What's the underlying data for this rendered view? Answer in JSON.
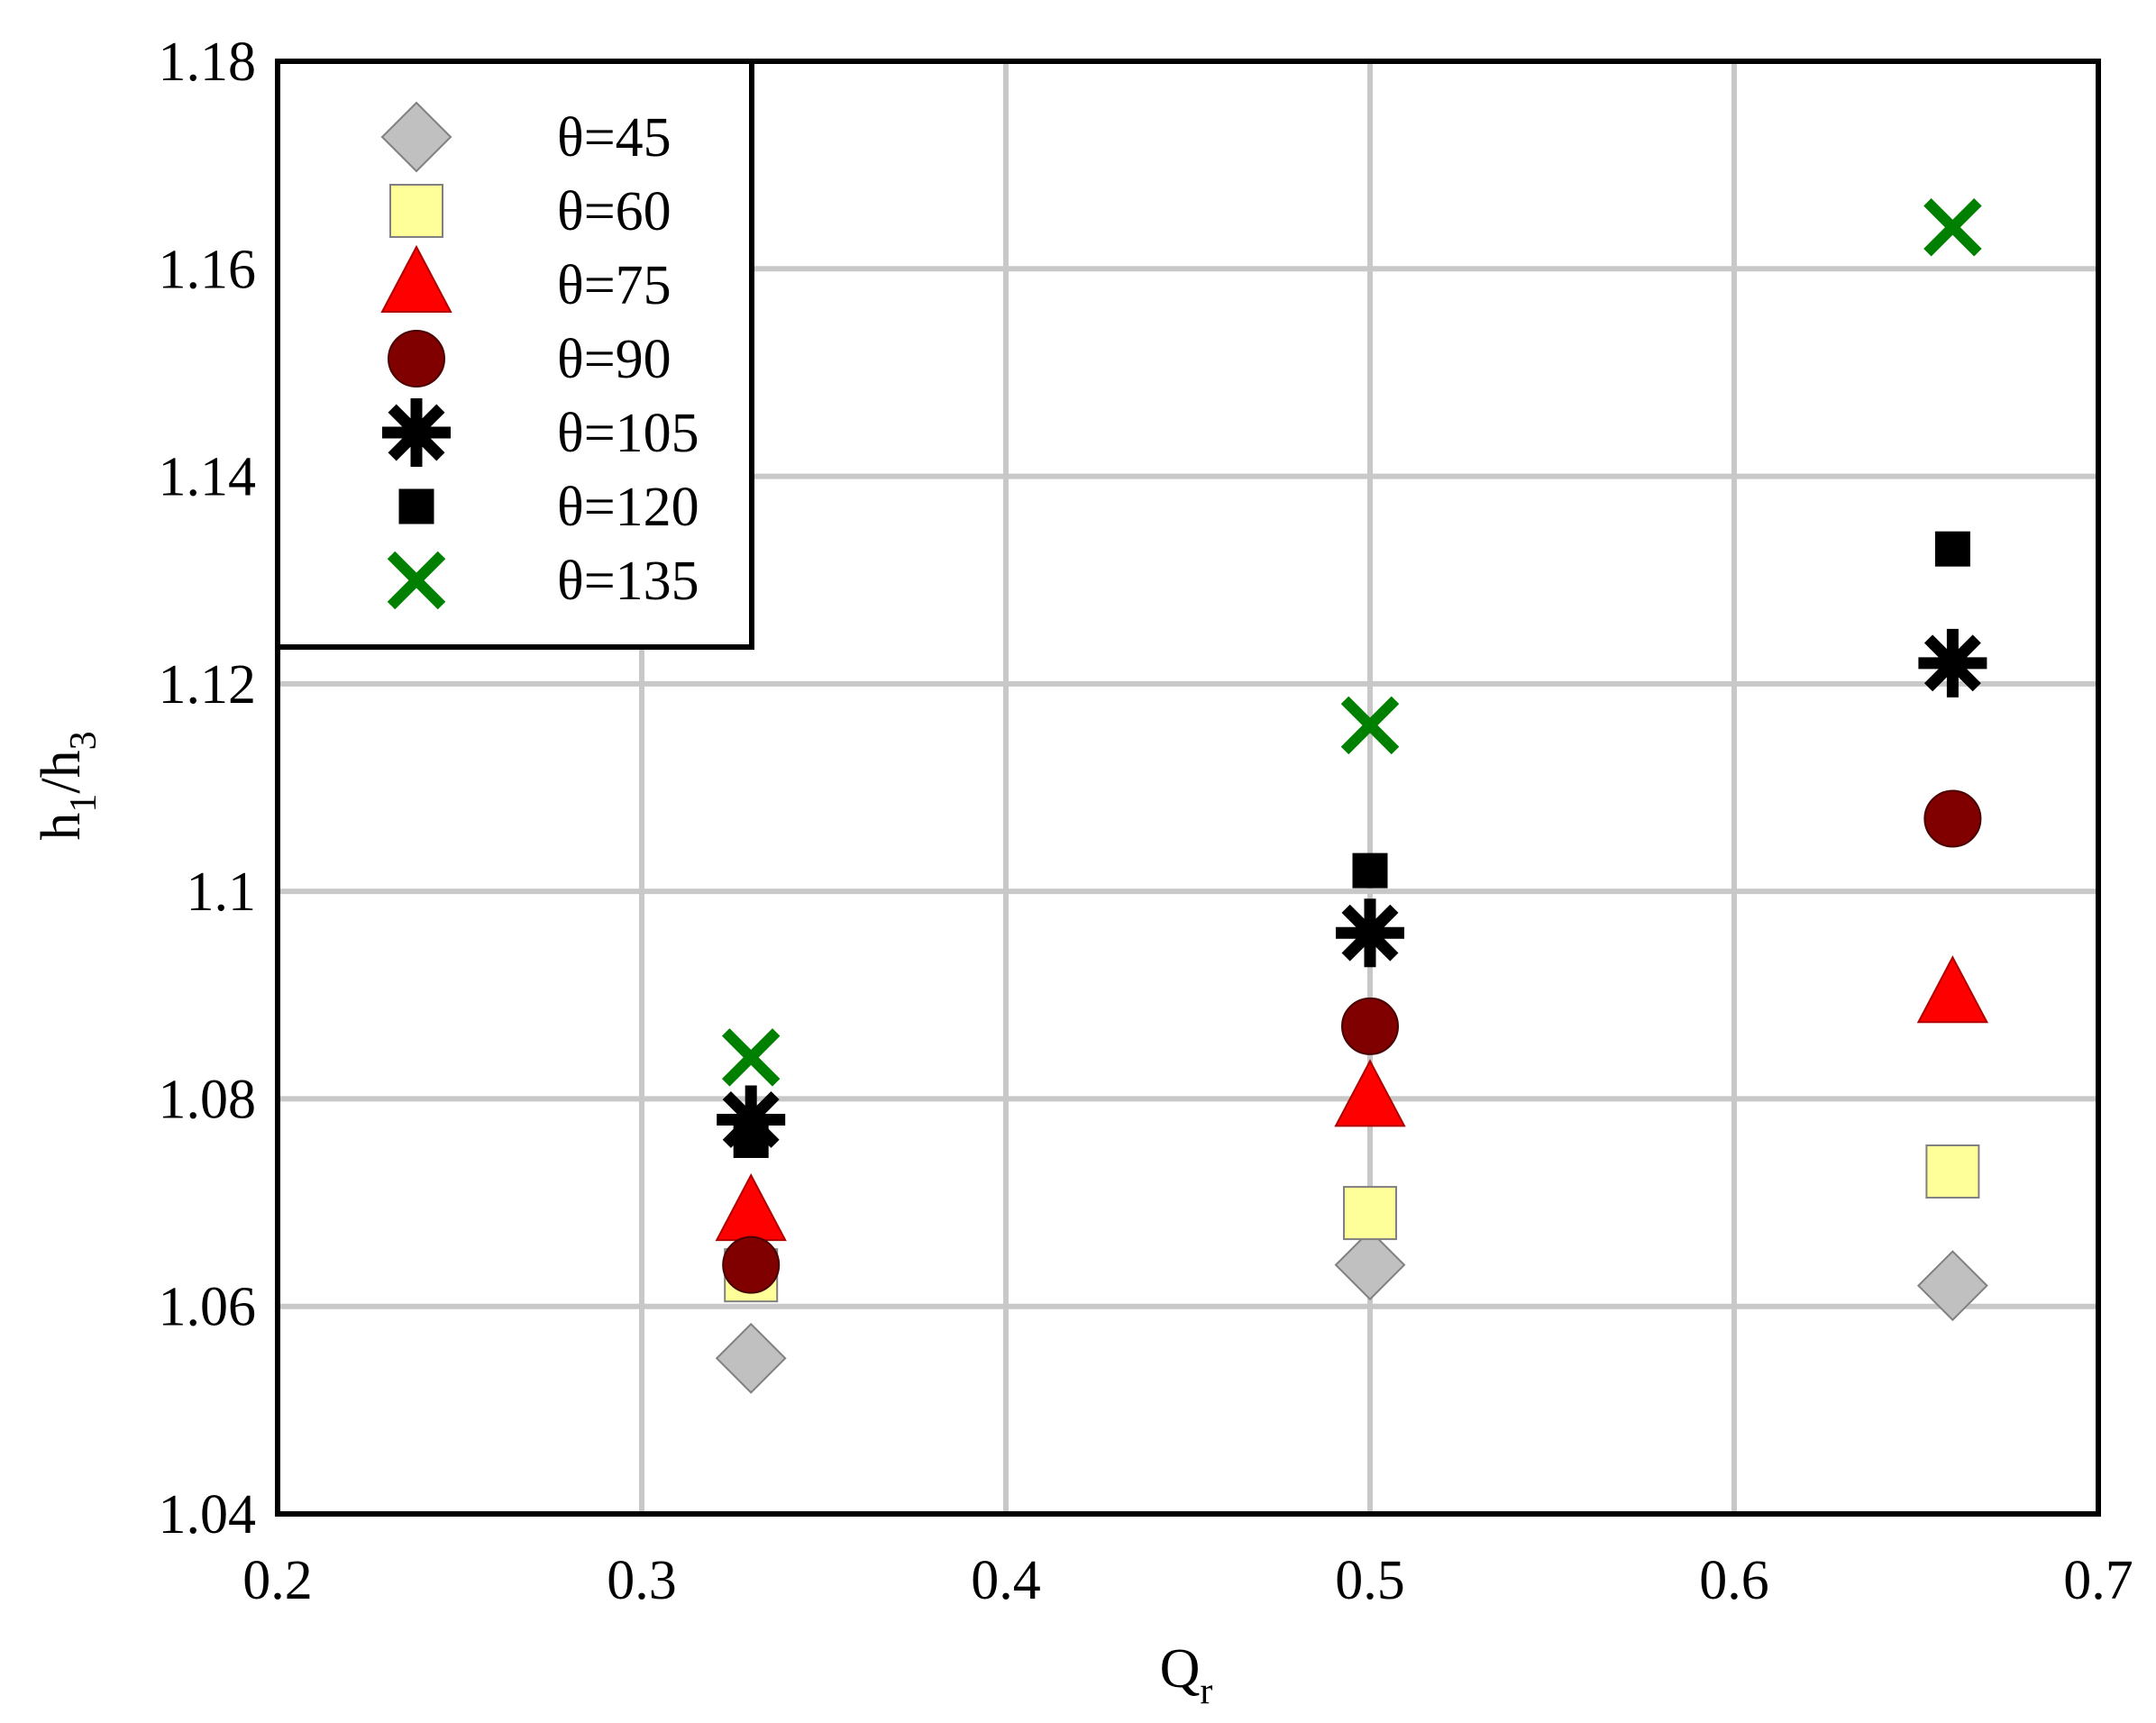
{
  "chart_data": {
    "type": "scatter",
    "title": "",
    "xlabel": "Q",
    "xlabel_sub": "r",
    "ylabel": "h",
    "ylabel_sub1": "1",
    "ylabel_mid": "/h",
    "ylabel_sub2": "3",
    "xlim": [
      0.2,
      0.7
    ],
    "ylim": [
      1.04,
      1.18
    ],
    "xticks": [
      0.2,
      0.3,
      0.4,
      0.5,
      0.6,
      0.7
    ],
    "xtick_labels": [
      "0.2",
      "0.3",
      "0.4",
      "0.5",
      "0.6",
      "0.7"
    ],
    "yticks": [
      1.04,
      1.06,
      1.08,
      1.1,
      1.12,
      1.14,
      1.16,
      1.18
    ],
    "ytick_labels": [
      "1.04",
      "1.06",
      "1.08",
      "1.1",
      "1.12",
      "1.14",
      "1.16",
      "1.18"
    ],
    "grid": true,
    "legend_position": "top-left",
    "series": [
      {
        "name": "θ=45",
        "marker": "diamond",
        "color": "#c0c0c0",
        "stroke": "#808080",
        "x": [
          0.33,
          0.5,
          0.66
        ],
        "y": [
          1.055,
          1.064,
          1.062
        ]
      },
      {
        "name": "θ=60",
        "marker": "square",
        "color": "#ffff99",
        "stroke": "#808080",
        "x": [
          0.33,
          0.5,
          0.66
        ],
        "y": [
          1.063,
          1.069,
          1.073
        ]
      },
      {
        "name": "θ=75",
        "marker": "triangle",
        "color": "#ff0000",
        "stroke": "#b00000",
        "x": [
          0.33,
          0.5,
          0.66
        ],
        "y": [
          1.069,
          1.08,
          1.09
        ]
      },
      {
        "name": "θ=90",
        "marker": "circle",
        "color": "#800000",
        "stroke": "#4a0000",
        "x": [
          0.33,
          0.5,
          0.66
        ],
        "y": [
          1.064,
          1.087,
          1.107
        ]
      },
      {
        "name": "θ=105",
        "marker": "star",
        "color": "#000000",
        "stroke": "#000000",
        "x": [
          0.33,
          0.5,
          0.66
        ],
        "y": [
          1.078,
          1.096,
          1.122
        ]
      },
      {
        "name": "θ=120",
        "marker": "smallsquare",
        "color": "#000000",
        "stroke": "#000000",
        "x": [
          0.33,
          0.5,
          0.66
        ],
        "y": [
          1.076,
          1.102,
          1.133
        ]
      },
      {
        "name": "θ=135",
        "marker": "x",
        "color": "#008000",
        "stroke": "#008000",
        "x": [
          0.33,
          0.5,
          0.66
        ],
        "y": [
          1.084,
          1.116,
          1.164
        ]
      }
    ]
  }
}
